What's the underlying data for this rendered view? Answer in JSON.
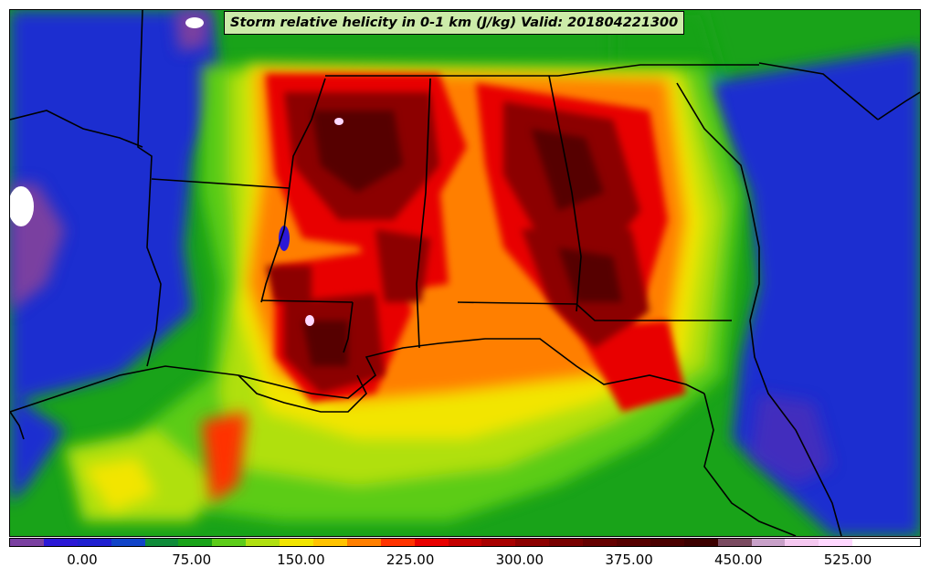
{
  "title": "Storm relative helicity in 0-1 km (J/kg) Valid: 201804221300",
  "colorbar": {
    "colors": [
      "#7a3fa0",
      "#2b18d6",
      "#1f1fd0",
      "#1144c8",
      "#0f8c3a",
      "#19a319",
      "#5ccc19",
      "#b0e010",
      "#f2e500",
      "#ffc300",
      "#ff7f00",
      "#ff3300",
      "#e80000",
      "#c40000",
      "#a80000",
      "#8c0000",
      "#780000",
      "#650000",
      "#560000",
      "#4a0000",
      "#3c0000",
      "#7a4a60",
      "#c8a0c8",
      "#f5c8f0",
      "#ffd8ff",
      "#ffffff",
      "#ffffff"
    ],
    "ticks": [
      {
        "label": "0.00",
        "value": 0
      },
      {
        "label": "75.00",
        "value": 75
      },
      {
        "label": "150.00",
        "value": 150
      },
      {
        "label": "225.00",
        "value": 225
      },
      {
        "label": "300.00",
        "value": 300
      },
      {
        "label": "375.00",
        "value": 375
      },
      {
        "label": "450.00",
        "value": 450
      },
      {
        "label": "525.00",
        "value": 525
      }
    ]
  }
}
